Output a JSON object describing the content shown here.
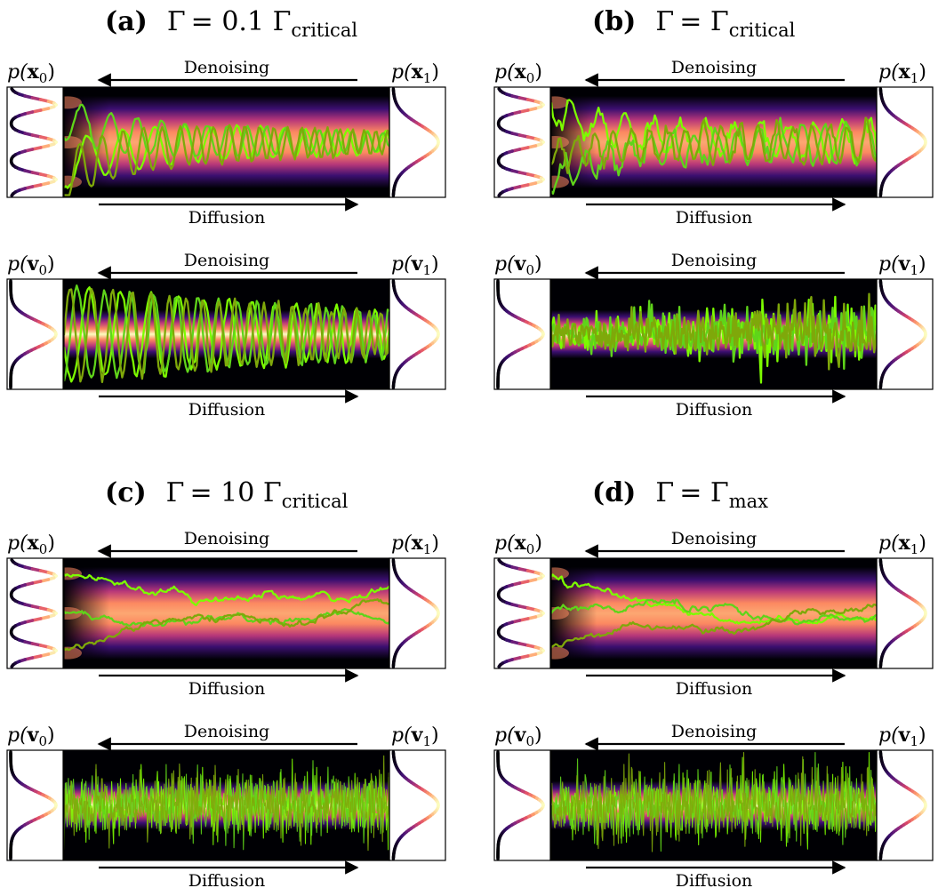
{
  "panels": [
    {
      "id": "a",
      "label": "(a)",
      "gamma_symbol": "Γ",
      "gamma_relation": "= 0.1 Γ",
      "gamma_subscript": "critical",
      "rows": [
        {
          "variable": "x",
          "start_dist": {
            "prefix": "p(",
            "var": "x",
            "sub": "0",
            "suffix": ")"
          },
          "end_dist": {
            "prefix": "p(",
            "var": "x",
            "sub": "1",
            "suffix": ")"
          },
          "top_arrow": "Denoising",
          "bottom_arrow": "Diffusion",
          "modes": 3,
          "trajectory_count": 3,
          "trajectory_roughness": "smooth oscillating"
        },
        {
          "variable": "v",
          "start_dist": {
            "prefix": "p(",
            "var": "v",
            "sub": "0",
            "suffix": ")"
          },
          "end_dist": {
            "prefix": "p(",
            "var": "v",
            "sub": "1",
            "suffix": ")"
          },
          "top_arrow": "Denoising",
          "bottom_arrow": "Diffusion",
          "modes": 1,
          "trajectory_count": 3,
          "trajectory_roughness": "oscillating"
        }
      ]
    },
    {
      "id": "b",
      "label": "(b)",
      "gamma_symbol": "Γ",
      "gamma_relation": "= Γ",
      "gamma_subscript": "critical",
      "rows": [
        {
          "variable": "x",
          "start_dist": {
            "prefix": "p(",
            "var": "x",
            "sub": "0",
            "suffix": ")"
          },
          "end_dist": {
            "prefix": "p(",
            "var": "x",
            "sub": "1",
            "suffix": ")"
          },
          "top_arrow": "Denoising",
          "bottom_arrow": "Diffusion",
          "modes": 3,
          "trajectory_count": 3,
          "trajectory_roughness": "damped oscillating"
        },
        {
          "variable": "v",
          "start_dist": {
            "prefix": "p(",
            "var": "v",
            "sub": "0",
            "suffix": ")"
          },
          "end_dist": {
            "prefix": "p(",
            "var": "v",
            "sub": "1",
            "suffix": ")"
          },
          "top_arrow": "Denoising",
          "bottom_arrow": "Diffusion",
          "modes": 1,
          "trajectory_count": 3,
          "trajectory_roughness": "noisy"
        }
      ]
    },
    {
      "id": "c",
      "label": "(c)",
      "gamma_symbol": "Γ",
      "gamma_relation": "= 10 Γ",
      "gamma_subscript": "critical",
      "rows": [
        {
          "variable": "x",
          "start_dist": {
            "prefix": "p(",
            "var": "x",
            "sub": "0",
            "suffix": ")"
          },
          "end_dist": {
            "prefix": "p(",
            "var": "x",
            "sub": "1",
            "suffix": ")"
          },
          "top_arrow": "Denoising",
          "bottom_arrow": "Diffusion",
          "modes": 3,
          "trajectory_count": 3,
          "trajectory_roughness": "brownian"
        },
        {
          "variable": "v",
          "start_dist": {
            "prefix": "p(",
            "var": "v",
            "sub": "0",
            "suffix": ")"
          },
          "end_dist": {
            "prefix": "p(",
            "var": "v",
            "sub": "1",
            "suffix": ")"
          },
          "top_arrow": "Denoising",
          "bottom_arrow": "Diffusion",
          "modes": 1,
          "trajectory_count": 3,
          "trajectory_roughness": "white noise"
        }
      ]
    },
    {
      "id": "d",
      "label": "(d)",
      "gamma_symbol": "Γ",
      "gamma_relation": "= Γ",
      "gamma_subscript": "max",
      "rows": [
        {
          "variable": "x",
          "start_dist": {
            "prefix": "p(",
            "var": "x",
            "sub": "0",
            "suffix": ")"
          },
          "end_dist": {
            "prefix": "p(",
            "var": "x",
            "sub": "1",
            "suffix": ")"
          },
          "top_arrow": "Denoising",
          "bottom_arrow": "Diffusion",
          "modes": 3,
          "trajectory_count": 3,
          "trajectory_roughness": "brownian"
        },
        {
          "variable": "v",
          "start_dist": {
            "prefix": "p(",
            "var": "v",
            "sub": "0",
            "suffix": ")"
          },
          "end_dist": {
            "prefix": "p(",
            "var": "v",
            "sub": "1",
            "suffix": ")"
          },
          "top_arrow": "Denoising",
          "bottom_arrow": "Diffusion",
          "modes": 1,
          "trajectory_count": 3,
          "trajectory_roughness": "white noise"
        }
      ]
    }
  ],
  "colors": {
    "background_dark": "#000004",
    "magma_mid": "#b73779",
    "magma_hot": "#fc8961",
    "magma_peak": "#fcfdbf",
    "trajectory_light": "#7cfc00",
    "trajectory_mid": "#5fd41a",
    "trajectory_dark": "#7fa80a",
    "arrow": "#000000",
    "box_border": "#000000"
  }
}
